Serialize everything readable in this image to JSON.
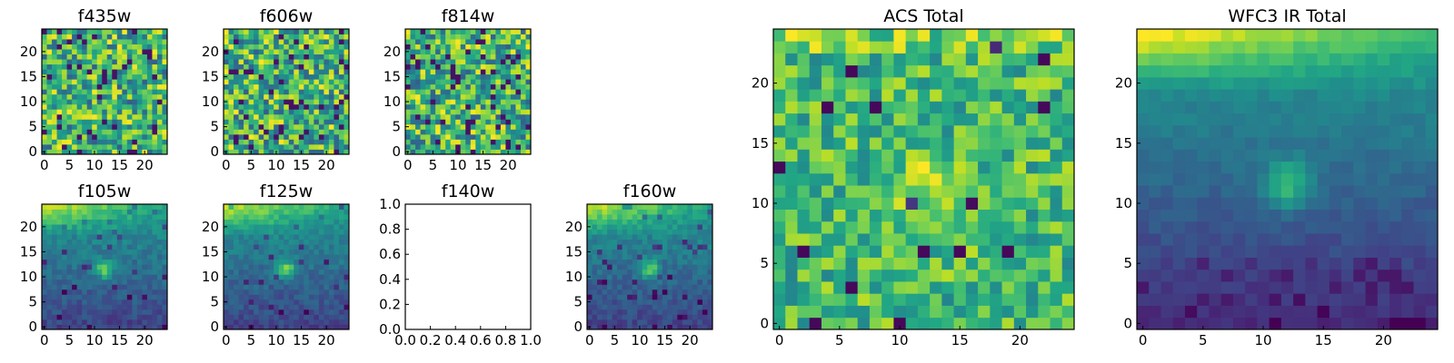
{
  "chart_data": [
    {
      "type": "heatmap",
      "title": "f435w",
      "kind": "noise",
      "xticks": [
        0,
        5,
        10,
        15,
        20
      ],
      "yticks": [
        0,
        5,
        10,
        15,
        20
      ],
      "grid_size": 25,
      "colormap": "viridis",
      "seed": 11,
      "empty": false
    },
    {
      "type": "heatmap",
      "title": "f606w",
      "kind": "noise",
      "xticks": [
        0,
        5,
        10,
        15,
        20
      ],
      "yticks": [
        0,
        5,
        10,
        15,
        20
      ],
      "grid_size": 25,
      "colormap": "viridis",
      "seed": 23,
      "empty": false
    },
    {
      "type": "heatmap",
      "title": "f814w",
      "kind": "noise",
      "xticks": [
        0,
        5,
        10,
        15,
        20
      ],
      "yticks": [
        0,
        5,
        10,
        15,
        20
      ],
      "grid_size": 25,
      "colormap": "viridis",
      "seed": 37,
      "empty": false
    },
    {
      "type": "heatmap",
      "title": "f105w",
      "kind": "source",
      "xticks": [
        0,
        5,
        10,
        15,
        20
      ],
      "yticks": [
        0,
        5,
        10,
        15,
        20
      ],
      "grid_size": 25,
      "colormap": "viridis",
      "seed": 41,
      "empty": false
    },
    {
      "type": "heatmap",
      "title": "f125w",
      "kind": "source",
      "xticks": [
        0,
        5,
        10,
        15,
        20
      ],
      "yticks": [
        0,
        5,
        10,
        15,
        20
      ],
      "grid_size": 25,
      "colormap": "viridis",
      "seed": 53,
      "empty": false
    },
    {
      "type": "table",
      "title": "f140w",
      "xticks": [
        "0.0",
        "0.2",
        "0.4",
        "0.6",
        "0.8",
        "1.0"
      ],
      "yticks": [
        "0.0",
        "0.2",
        "0.4",
        "0.6",
        "0.8",
        "1.0"
      ],
      "xlim": [
        0,
        1
      ],
      "ylim": [
        0,
        1
      ],
      "empty": true
    },
    {
      "type": "heatmap",
      "title": "f160w",
      "kind": "source",
      "xticks": [
        0,
        5,
        10,
        15,
        20
      ],
      "yticks": [
        0,
        5,
        10,
        15,
        20
      ],
      "grid_size": 25,
      "colormap": "viridis",
      "seed": 67,
      "empty": false
    },
    {
      "type": "heatmap",
      "title": "ACS Total",
      "kind": "noise-bright",
      "xticks": [
        0,
        5,
        10,
        15,
        20
      ],
      "yticks": [
        0,
        5,
        10,
        15,
        20
      ],
      "grid_size": 25,
      "colormap": "viridis",
      "seed": 79,
      "empty": false
    },
    {
      "type": "heatmap",
      "title": "WFC3 IR Total",
      "kind": "source-smooth",
      "xticks": [
        0,
        5,
        10,
        15,
        20
      ],
      "yticks": [
        0,
        5,
        10,
        15,
        20
      ],
      "grid_size": 25,
      "colormap": "viridis",
      "seed": 83,
      "empty": false
    }
  ]
}
